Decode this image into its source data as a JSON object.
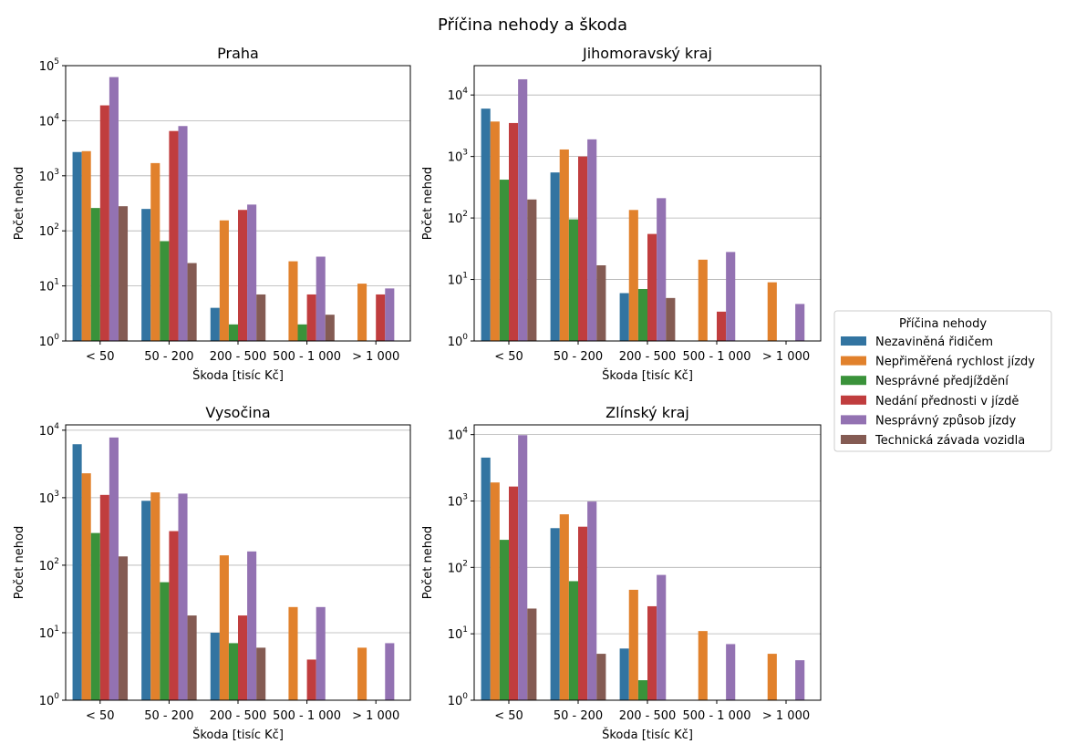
{
  "title": "Příčina nehody a škoda",
  "legend": {
    "title": "Příčina nehody",
    "placement": "right-center"
  },
  "chart_data": [
    {
      "type": "bar",
      "title": "Praha",
      "xlabel": "Škoda [tisíc Kč]",
      "ylabel": "Počet nehod",
      "yscale": "log",
      "ylim": [
        1,
        100000
      ],
      "yticks": [
        {
          "v": 1,
          "base": "10",
          "exp": "0"
        },
        {
          "v": 10,
          "base": "10",
          "exp": "1"
        },
        {
          "v": 100,
          "base": "10",
          "exp": "2"
        },
        {
          "v": 1000,
          "base": "10",
          "exp": "3"
        },
        {
          "v": 10000,
          "base": "10",
          "exp": "4"
        },
        {
          "v": 100000,
          "base": "10",
          "exp": "5"
        }
      ],
      "grid": "y",
      "categories": [
        "< 50",
        "50 - 200",
        "200 - 500",
        "500 - 1 000",
        "> 1 000"
      ],
      "series": [
        {
          "name": "Nezaviněná řidičem",
          "color": "#3274a1",
          "values": [
            2700,
            250,
            4,
            null,
            null
          ]
        },
        {
          "name": "Nepřiměřená rychlost jízdy",
          "color": "#e1812c",
          "values": [
            2800,
            1700,
            155,
            28,
            11
          ]
        },
        {
          "name": "Nesprávné předjíždění",
          "color": "#3a923a",
          "values": [
            260,
            65,
            2,
            2,
            null
          ]
        },
        {
          "name": "Nedání přednosti v jízdě",
          "color": "#c03d3e",
          "values": [
            19000,
            6500,
            240,
            7,
            7
          ]
        },
        {
          "name": "Nesprávný způsob jízdy",
          "color": "#9372b2",
          "values": [
            62000,
            8000,
            300,
            34,
            9
          ]
        },
        {
          "name": "Technická závada vozidla",
          "color": "#845b53",
          "values": [
            280,
            26,
            7,
            3,
            null
          ]
        }
      ]
    },
    {
      "type": "bar",
      "title": "Jihomoravský kraj",
      "xlabel": "Škoda [tisíc Kč]",
      "ylabel": "Počet nehod",
      "yscale": "log",
      "ylim": [
        1,
        30000
      ],
      "yticks": [
        {
          "v": 1,
          "base": "10",
          "exp": "0"
        },
        {
          "v": 10,
          "base": "10",
          "exp": "1"
        },
        {
          "v": 100,
          "base": "10",
          "exp": "2"
        },
        {
          "v": 1000,
          "base": "10",
          "exp": "3"
        },
        {
          "v": 10000,
          "base": "10",
          "exp": "4"
        }
      ],
      "grid": "y",
      "categories": [
        "< 50",
        "50 - 200",
        "200 - 500",
        "500 - 1 000",
        "> 1 000"
      ],
      "series": [
        {
          "name": "Nezaviněná řidičem",
          "color": "#3274a1",
          "values": [
            6000,
            550,
            6,
            null,
            null
          ]
        },
        {
          "name": "Nepřiměřená rychlost jízdy",
          "color": "#e1812c",
          "values": [
            3700,
            1300,
            135,
            21,
            9
          ]
        },
        {
          "name": "Nesprávné předjíždění",
          "color": "#3a923a",
          "values": [
            420,
            95,
            7,
            null,
            null
          ]
        },
        {
          "name": "Nedání přednosti v jízdě",
          "color": "#c03d3e",
          "values": [
            3500,
            1000,
            55,
            3,
            null
          ]
        },
        {
          "name": "Nesprávný způsob jízdy",
          "color": "#9372b2",
          "values": [
            18000,
            1900,
            210,
            28,
            4
          ]
        },
        {
          "name": "Technická závada vozidla",
          "color": "#845b53",
          "values": [
            200,
            17,
            5,
            null,
            null
          ]
        }
      ]
    },
    {
      "type": "bar",
      "title": "Vysočina",
      "xlabel": "Škoda [tisíc Kč]",
      "ylabel": "Počet nehod",
      "yscale": "log",
      "ylim": [
        1,
        12000
      ],
      "yticks": [
        {
          "v": 1,
          "base": "10",
          "exp": "0"
        },
        {
          "v": 10,
          "base": "10",
          "exp": "1"
        },
        {
          "v": 100,
          "base": "10",
          "exp": "2"
        },
        {
          "v": 1000,
          "base": "10",
          "exp": "3"
        },
        {
          "v": 10000,
          "base": "10",
          "exp": "4"
        }
      ],
      "grid": "y",
      "categories": [
        "< 50",
        "50 - 200",
        "200 - 500",
        "500 - 1 000",
        "> 1 000"
      ],
      "series": [
        {
          "name": "Nezaviněná řidičem",
          "color": "#3274a1",
          "values": [
            6200,
            900,
            10,
            null,
            null
          ]
        },
        {
          "name": "Nepřiměřená rychlost jízdy",
          "color": "#e1812c",
          "values": [
            2300,
            1200,
            140,
            24,
            6
          ]
        },
        {
          "name": "Nesprávné předjíždění",
          "color": "#3a923a",
          "values": [
            300,
            56,
            7,
            null,
            null
          ]
        },
        {
          "name": "Nedání přednosti v jízdě",
          "color": "#c03d3e",
          "values": [
            1100,
            320,
            18,
            4,
            null
          ]
        },
        {
          "name": "Nesprávný způsob jízdy",
          "color": "#9372b2",
          "values": [
            7800,
            1150,
            160,
            24,
            7
          ]
        },
        {
          "name": "Technická závada vozidla",
          "color": "#845b53",
          "values": [
            135,
            18,
            6,
            null,
            null
          ]
        }
      ]
    },
    {
      "type": "bar",
      "title": "Zlínský kraj",
      "xlabel": "Škoda [tisíc Kč]",
      "ylabel": "Počet nehod",
      "yscale": "log",
      "ylim": [
        1,
        14000
      ],
      "yticks": [
        {
          "v": 1,
          "base": "10",
          "exp": "0"
        },
        {
          "v": 10,
          "base": "10",
          "exp": "1"
        },
        {
          "v": 100,
          "base": "10",
          "exp": "2"
        },
        {
          "v": 1000,
          "base": "10",
          "exp": "3"
        },
        {
          "v": 10000,
          "base": "10",
          "exp": "4"
        }
      ],
      "grid": "y",
      "categories": [
        "< 50",
        "50 - 200",
        "200 - 500",
        "500 - 1 000",
        "> 1 000"
      ],
      "series": [
        {
          "name": "Nezaviněná řidičem",
          "color": "#3274a1",
          "values": [
            4500,
            390,
            6,
            null,
            null
          ]
        },
        {
          "name": "Nepřiměřená rychlost jízdy",
          "color": "#e1812c",
          "values": [
            1900,
            630,
            46,
            11,
            5
          ]
        },
        {
          "name": "Nesprávné předjíždění",
          "color": "#3a923a",
          "values": [
            260,
            62,
            2,
            null,
            null
          ]
        },
        {
          "name": "Nedání přednosti v jízdě",
          "color": "#c03d3e",
          "values": [
            1650,
            410,
            26,
            null,
            null
          ]
        },
        {
          "name": "Nesprávný způsob jízdy",
          "color": "#9372b2",
          "values": [
            9800,
            980,
            77,
            7,
            4
          ]
        },
        {
          "name": "Technická závada vozidla",
          "color": "#845b53",
          "values": [
            24,
            5,
            null,
            null,
            null
          ]
        }
      ]
    }
  ]
}
